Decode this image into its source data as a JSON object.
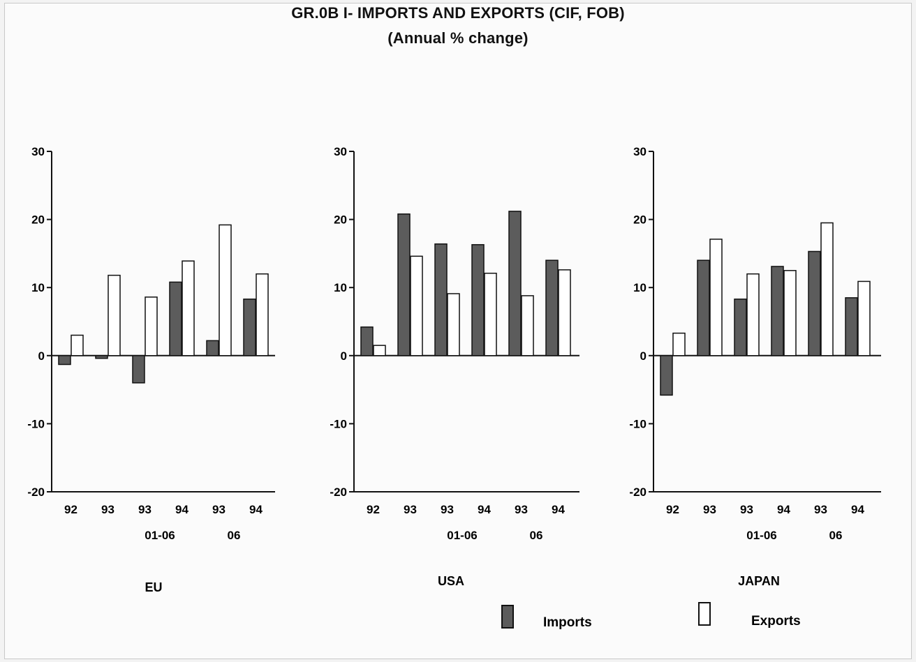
{
  "figure": {
    "title": "GR.0B I- IMPORTS AND EXPORTS (CIF, FOB)",
    "subtitle": "(Annual % change)"
  },
  "legend": {
    "imports_label": "Imports",
    "exports_label": "Exports"
  },
  "chart_data": [
    {
      "type": "bar",
      "title": "EU",
      "categories": [
        "92",
        "93",
        "93",
        "94",
        "93",
        "94"
      ],
      "period_labels": [
        {
          "at_index": 2,
          "text": "01-06"
        },
        {
          "at_index": 4,
          "text": "06"
        }
      ],
      "series": [
        {
          "name": "Imports",
          "color": "#5c5c5c",
          "values": [
            -1.3,
            -0.4,
            -4.0,
            10.8,
            2.2,
            8.3
          ]
        },
        {
          "name": "Exports",
          "color": "#ffffff",
          "values": [
            3.0,
            11.8,
            8.6,
            13.9,
            19.2,
            12.0
          ]
        }
      ],
      "ylim": [
        -20,
        30
      ],
      "yticks": [
        -20,
        -10,
        0,
        10,
        20,
        30
      ],
      "grid": false
    },
    {
      "type": "bar",
      "title": "USA",
      "categories": [
        "92",
        "93",
        "93",
        "94",
        "93",
        "94"
      ],
      "period_labels": [
        {
          "at_index": 2,
          "text": "01-06"
        },
        {
          "at_index": 4,
          "text": "06"
        }
      ],
      "series": [
        {
          "name": "Imports",
          "color": "#5c5c5c",
          "values": [
            4.2,
            20.8,
            16.4,
            16.3,
            21.2,
            14.0
          ]
        },
        {
          "name": "Exports",
          "color": "#ffffff",
          "values": [
            1.5,
            14.6,
            9.1,
            12.1,
            8.8,
            12.6
          ]
        }
      ],
      "ylim": [
        -20,
        30
      ],
      "yticks": [
        -20,
        -10,
        0,
        10,
        20,
        30
      ],
      "grid": false
    },
    {
      "type": "bar",
      "title": "JAPAN",
      "categories": [
        "92",
        "93",
        "93",
        "94",
        "93",
        "94"
      ],
      "period_labels": [
        {
          "at_index": 2,
          "text": "01-06"
        },
        {
          "at_index": 4,
          "text": "06"
        }
      ],
      "series": [
        {
          "name": "Imports",
          "color": "#5c5c5c",
          "values": [
            -5.8,
            14.0,
            8.3,
            13.1,
            15.3,
            8.5
          ]
        },
        {
          "name": "Exports",
          "color": "#ffffff",
          "values": [
            3.3,
            17.1,
            12.0,
            12.5,
            19.5,
            10.9
          ]
        }
      ],
      "ylim": [
        -20,
        30
      ],
      "yticks": [
        -20,
        -10,
        0,
        10,
        20,
        30
      ],
      "grid": false
    }
  ]
}
